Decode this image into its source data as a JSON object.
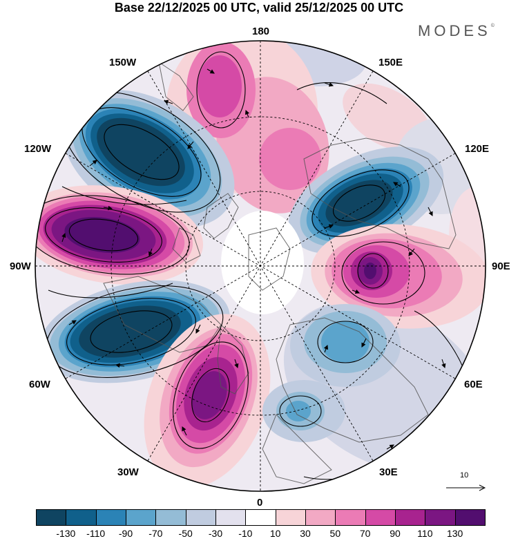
{
  "title": "Base 22/12/2025 00 UTC, valid 25/12/2025 00 UTC",
  "brand": "MODES",
  "brand_mark": "©",
  "longitude_labels": {
    "l180": "180",
    "l150w": "150W",
    "l150e": "150E",
    "l120w": "120W",
    "l120e": "120E",
    "l90w": "90W",
    "l90e": "90E",
    "l60w": "60W",
    "l60e": "60E",
    "l30w": "30W",
    "l30e": "30E",
    "l0": "0"
  },
  "vector_reference": {
    "value": "10",
    "icon": "arrow-right-icon"
  },
  "colorbar": {
    "ticks": [
      "-130",
      "-110",
      "-90",
      "-70",
      "-50",
      "-30",
      "-10",
      "10",
      "30",
      "50",
      "70",
      "90",
      "110",
      "130"
    ],
    "colors": [
      "#0f4461",
      "#10608b",
      "#2b83b6",
      "#5ba4cc",
      "#94bcd6",
      "#c0cce0",
      "#e3e1ee",
      "#ffffff",
      "#f7d4d8",
      "#f2a9c4",
      "#eb7bb5",
      "#d54aa6",
      "#a8238f",
      "#7b1682",
      "#520e6f"
    ]
  },
  "colors": {
    "negative_core": "#0f4461",
    "positive_core": "#520e6f",
    "land_outline": "#555555",
    "grid": "#000000"
  }
}
